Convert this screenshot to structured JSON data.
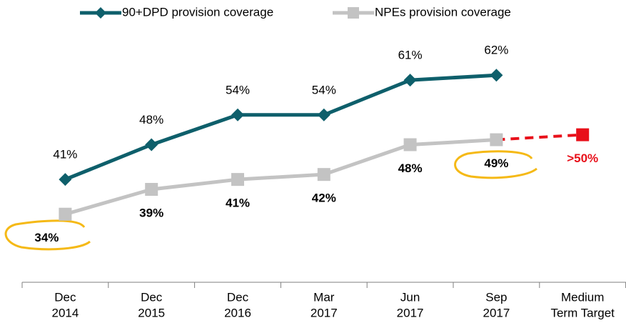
{
  "chart_data": {
    "type": "line",
    "categories": [
      [
        "Dec",
        "2014"
      ],
      [
        "Dec",
        "2015"
      ],
      [
        "Dec",
        "2016"
      ],
      [
        "Mar",
        "2017"
      ],
      [
        "Jun",
        "2017"
      ],
      [
        "Sep",
        "2017"
      ],
      [
        "Medium",
        "Term Target"
      ]
    ],
    "series": [
      {
        "name": "90+DPD provision coverage",
        "color": "#0e5f6b",
        "marker": "diamond",
        "values": [
          41,
          48,
          54,
          54,
          61,
          62,
          null
        ],
        "value_labels": [
          "41%",
          "48%",
          "54%",
          "54%",
          "61%",
          "62%",
          null
        ]
      },
      {
        "name": "NPEs provision coverage",
        "color": "#c3c3c3",
        "marker": "square",
        "values": [
          34,
          39,
          41,
          42,
          48,
          49,
          null
        ],
        "value_labels": [
          "34%",
          "39%",
          "41%",
          "42%",
          "48%",
          "49%",
          null
        ]
      }
    ],
    "target": {
      "value": 50,
      "label": ">50%",
      "color": "#e8101a"
    },
    "ylim": [
      20,
      77
    ]
  }
}
